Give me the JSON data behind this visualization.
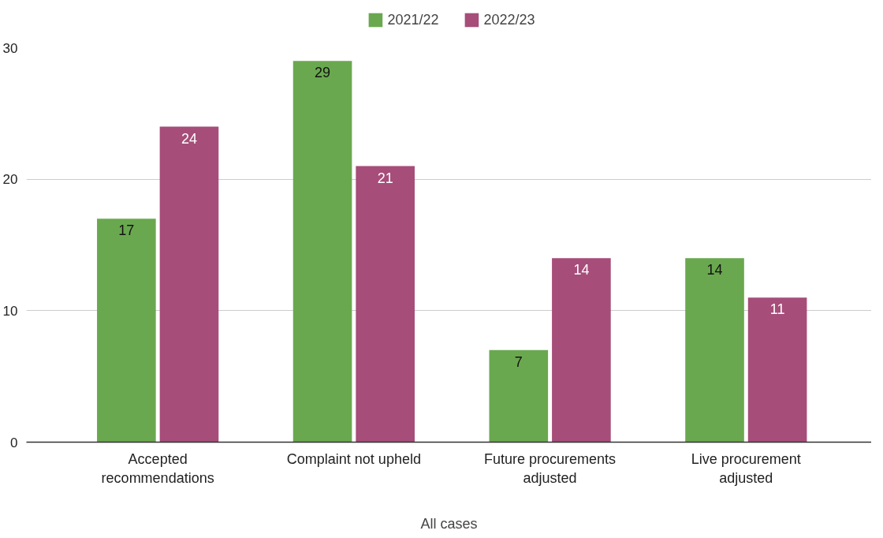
{
  "chart_data": {
    "type": "bar",
    "xlabel": "All cases",
    "categories": [
      "Accepted recommendations",
      "Complaint not upheld",
      "Future procurements adjusted",
      "Live procurement adjusted"
    ],
    "series": [
      {
        "name": "2021/22",
        "color": "#6aa84f",
        "values": [
          17,
          29,
          7,
          14
        ]
      },
      {
        "name": "2022/23",
        "color": "#a64d79",
        "values": [
          24,
          21,
          14,
          11
        ]
      }
    ],
    "ylim": [
      0,
      30
    ],
    "yticks": [
      0,
      10,
      20,
      30
    ],
    "grid": "y",
    "legend": "top",
    "data_labels": true
  }
}
